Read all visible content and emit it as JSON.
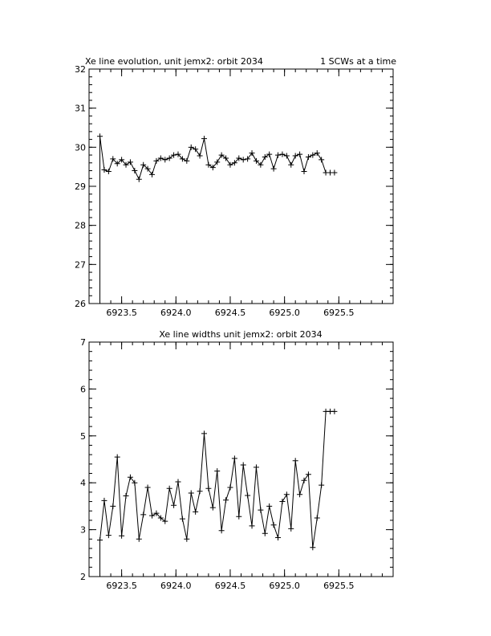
{
  "chart_data": [
    {
      "type": "line",
      "title": "Xe line evolution, unit jemx2: orbit 2034",
      "subtitle": "1 SCWs at a time",
      "xlabel": "",
      "ylabel": "",
      "xlim": [
        6923.2,
        6926.0
      ],
      "ylim": [
        26,
        32
      ],
      "xticks": [
        6923.5,
        6924.0,
        6924.5,
        6925.0,
        6925.5
      ],
      "xtick_labels": [
        "6923.5",
        "6924.0",
        "6924.5",
        "6925.0",
        "6925.5"
      ],
      "yticks": [
        26,
        27,
        28,
        29,
        30,
        31,
        32
      ],
      "ytick_labels": [
        "26",
        "27",
        "28",
        "29",
        "30",
        "31",
        "32"
      ],
      "marker": "plus",
      "grid": false,
      "series": [
        {
          "x": [
            6923.3,
            6923.3,
            6923.34,
            6923.38,
            6923.42,
            6923.46,
            6923.5,
            6923.54,
            6923.58,
            6923.62,
            6923.66,
            6923.7,
            6923.74,
            6923.78,
            6923.82,
            6923.86,
            6923.9,
            6923.94,
            6923.98,
            6924.02,
            6924.06,
            6924.1,
            6924.14,
            6924.18,
            6924.22,
            6924.26,
            6924.3,
            6924.34,
            6924.38,
            6924.42,
            6924.46,
            6924.5,
            6924.54,
            6924.58,
            6924.62,
            6924.66,
            6924.7,
            6924.74,
            6924.78,
            6924.82,
            6924.86,
            6924.9,
            6924.94,
            6924.98,
            6925.02,
            6925.06,
            6925.1,
            6925.14,
            6925.18,
            6925.22,
            6925.26,
            6925.3,
            6925.34,
            6925.38,
            6925.42,
            6925.46
          ],
          "y": [
            26.0,
            30.28,
            29.42,
            29.38,
            29.7,
            29.58,
            29.68,
            29.55,
            29.62,
            29.4,
            29.18,
            29.55,
            29.45,
            29.3,
            29.65,
            29.72,
            29.68,
            29.72,
            29.8,
            29.82,
            29.7,
            29.65,
            30.0,
            29.95,
            29.78,
            30.22,
            29.55,
            29.48,
            29.62,
            29.8,
            29.72,
            29.55,
            29.6,
            29.72,
            29.68,
            29.7,
            29.85,
            29.65,
            29.55,
            29.75,
            29.82,
            29.45,
            29.8,
            29.82,
            29.78,
            29.55,
            29.78,
            29.82,
            29.38,
            29.75,
            29.8,
            29.85,
            29.68,
            29.35,
            29.35,
            29.35
          ]
        }
      ]
    },
    {
      "type": "line",
      "title": "Xe line widths unit jemx2: orbit 2034",
      "xlabel": "",
      "ylabel": "",
      "xlim": [
        6923.2,
        6926.0
      ],
      "ylim": [
        2,
        7
      ],
      "xticks": [
        6923.5,
        6924.0,
        6924.5,
        6925.0,
        6925.5
      ],
      "xtick_labels": [
        "6923.5",
        "6924.0",
        "6924.5",
        "6925.0",
        "6925.5"
      ],
      "yticks": [
        2,
        3,
        4,
        5,
        6,
        7
      ],
      "ytick_labels": [
        "2",
        "3",
        "4",
        "5",
        "6",
        "7"
      ],
      "marker": "plus",
      "grid": false,
      "series": [
        {
          "x": [
            6923.3,
            6923.3,
            6923.34,
            6923.38,
            6923.42,
            6923.46,
            6923.5,
            6923.54,
            6923.58,
            6923.62,
            6923.66,
            6923.7,
            6923.74,
            6923.78,
            6923.82,
            6923.86,
            6923.9,
            6923.94,
            6923.98,
            6924.02,
            6924.06,
            6924.1,
            6924.14,
            6924.18,
            6924.22,
            6924.26,
            6924.3,
            6924.34,
            6924.38,
            6924.42,
            6924.46,
            6924.5,
            6924.54,
            6924.58,
            6924.62,
            6924.66,
            6924.7,
            6924.74,
            6924.78,
            6924.82,
            6924.86,
            6924.9,
            6924.94,
            6924.98,
            6925.02,
            6925.06,
            6925.1,
            6925.14,
            6925.18,
            6925.22,
            6925.26,
            6925.3,
            6925.34,
            6925.38,
            6925.42,
            6925.46
          ],
          "y": [
            2.0,
            2.78,
            3.62,
            2.88,
            3.5,
            4.55,
            2.87,
            3.72,
            4.12,
            4.0,
            2.8,
            3.32,
            3.9,
            3.3,
            3.35,
            3.25,
            3.18,
            3.88,
            3.52,
            4.02,
            3.23,
            2.8,
            3.78,
            3.38,
            3.82,
            5.05,
            3.88,
            3.47,
            4.25,
            2.98,
            3.63,
            3.9,
            4.52,
            3.28,
            4.38,
            3.73,
            3.08,
            4.33,
            3.42,
            2.92,
            3.5,
            3.1,
            2.83,
            3.6,
            3.75,
            3.02,
            4.47,
            3.75,
            4.05,
            4.18,
            2.62,
            3.25,
            3.95,
            5.52,
            5.52,
            5.52
          ]
        }
      ]
    }
  ]
}
